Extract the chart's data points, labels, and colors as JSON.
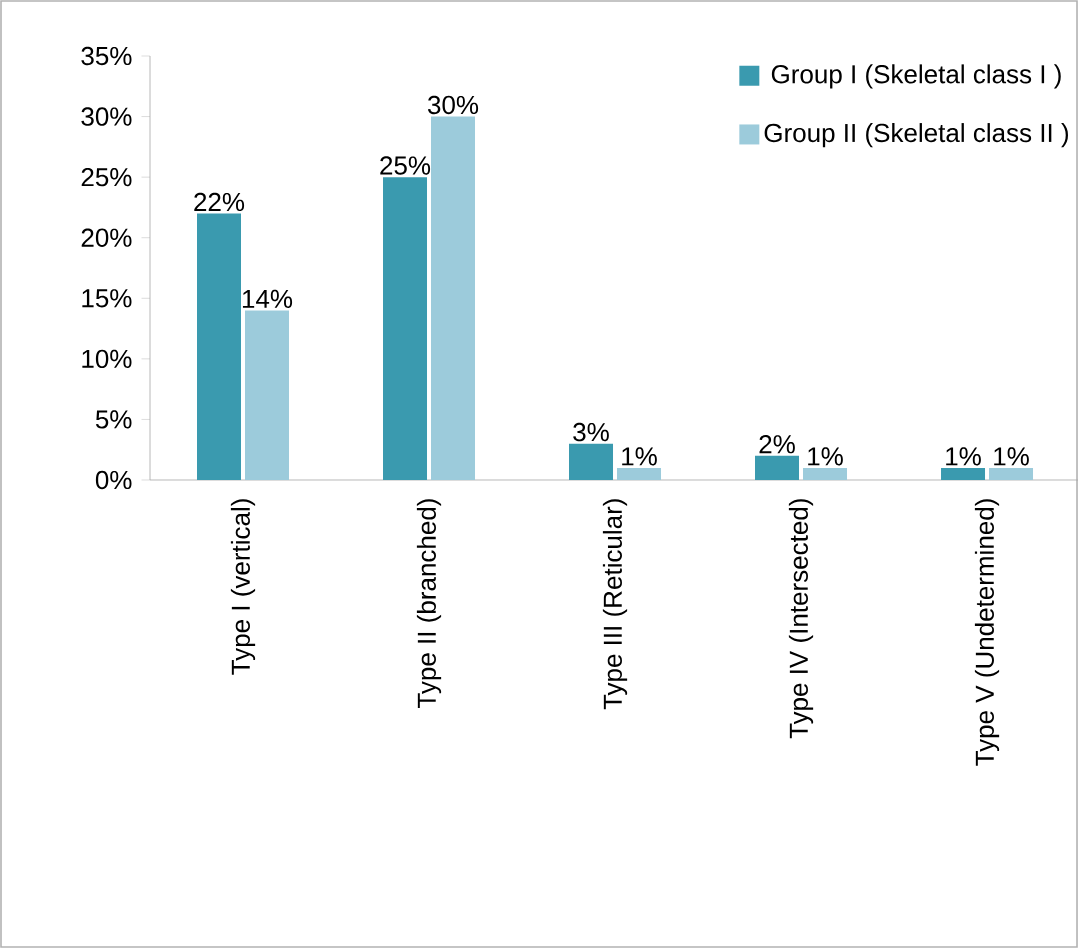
{
  "chart_data": {
    "type": "bar",
    "categories": [
      "Type I (vertical)",
      "Type II (branched)",
      "Type III (Reticular)",
      "Type IV (Intersected)",
      "Type V (Undetermined)"
    ],
    "series": [
      {
        "name": "Group I (Skeletal class I )",
        "color": "#3a9aaf",
        "values": [
          22,
          25,
          3,
          2,
          1
        ],
        "value_labels": [
          "22%",
          "25%",
          "3%",
          "2%",
          "1%"
        ]
      },
      {
        "name": "Group II (Skeletal class II )",
        "color": "#9ccbdb",
        "values": [
          14,
          30,
          1,
          1,
          1
        ],
        "value_labels": [
          "14%",
          "30%",
          "1%",
          "1%",
          "1%"
        ]
      }
    ],
    "ylim": [
      0,
      35
    ],
    "yticks": [
      {
        "value": 0,
        "label": "0%"
      },
      {
        "value": 5,
        "label": "5%"
      },
      {
        "value": 10,
        "label": "10%"
      },
      {
        "value": 15,
        "label": "15%"
      },
      {
        "value": 20,
        "label": "20%"
      },
      {
        "value": 25,
        "label": "25%"
      },
      {
        "value": 30,
        "label": "30%"
      },
      {
        "value": 35,
        "label": "35%"
      }
    ],
    "legend": "top right",
    "grid": false
  }
}
